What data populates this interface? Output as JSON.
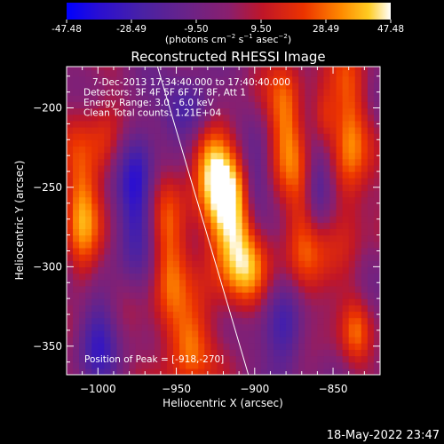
{
  "chart_data": {
    "type": "heatmap",
    "title": "Reconstructed RHESSI Image",
    "xlabel": "Heliocentric X (arcsec)",
    "ylabel": "Heliocentric Y (arcsec)",
    "xlim": [
      -1020,
      -820
    ],
    "ylim": [
      -368,
      -174
    ],
    "x_ticks": [
      -1000,
      -950,
      -900,
      -850
    ],
    "y_ticks": [
      -200,
      -250,
      -300,
      -350
    ],
    "colorbar": {
      "range": [
        -47.48,
        47.48
      ],
      "tick_values": [
        -47.48,
        -28.49,
        -9.5,
        9.5,
        28.49,
        47.48
      ],
      "tick_labels": [
        "-47.48",
        "-28.49",
        "-9.50",
        "9.50",
        "28.49",
        "47.48"
      ],
      "units_html": "(photons cm<tspan dy=\"-5\" font-size=\"7\">−2</tspan><tspan dy=\"5\"> s</tspan><tspan dy=\"-5\" font-size=\"7\">−1</tspan><tspan dy=\"5\"> asec</tspan><tspan dy=\"-5\" font-size=\"7\">−2</tspan><tspan dy=\"5\">)</tspan>"
    },
    "annotations": [
      "7-Dec-2013 17:34:40.000 to 17:40:40.000",
      "Detectors: 3F 4F 5F 6F 7F 8F, Att 1",
      "Energy Range: 3.0 - 6.0 keV",
      "Clean     Total counts: 1.21E+04"
    ],
    "peak_label": "Position of Peak = [-918,-270]",
    "peak": {
      "x": -918,
      "y": -270,
      "value": 47.48
    },
    "limb_line": [
      {
        "x": -962,
        "y": -174
      },
      {
        "x": -904,
        "y": -368
      }
    ],
    "sources": [
      {
        "x": -918,
        "y": -270,
        "sx": 12,
        "sy": 28,
        "amp": 46
      },
      {
        "x": -928,
        "y": -232,
        "sx": 10,
        "sy": 20,
        "amp": 30
      },
      {
        "x": -905,
        "y": -305,
        "sx": 10,
        "sy": 20,
        "amp": 24
      },
      {
        "x": -1010,
        "y": -270,
        "sx": 8,
        "sy": 45,
        "amp": 30
      },
      {
        "x": -996,
        "y": -225,
        "sx": 7,
        "sy": 18,
        "amp": 18
      },
      {
        "x": -955,
        "y": -300,
        "sx": 8,
        "sy": 40,
        "amp": 26
      },
      {
        "x": -942,
        "y": -350,
        "sx": 9,
        "sy": 18,
        "amp": 30
      },
      {
        "x": -880,
        "y": -210,
        "sx": 8,
        "sy": 28,
        "amp": 28
      },
      {
        "x": -870,
        "y": -300,
        "sx": 10,
        "sy": 40,
        "amp": 30
      },
      {
        "x": -856,
        "y": -205,
        "sx": 6,
        "sy": 14,
        "amp": 24
      },
      {
        "x": -840,
        "y": -225,
        "sx": 8,
        "sy": 45,
        "amp": 28
      },
      {
        "x": -835,
        "y": -340,
        "sx": 6,
        "sy": 15,
        "amp": 18
      },
      {
        "x": -975,
        "y": -250,
        "sx": 8,
        "sy": 30,
        "amp": -38
      },
      {
        "x": -880,
        "y": -340,
        "sx": 10,
        "sy": 25,
        "amp": -42
      },
      {
        "x": -1000,
        "y": -340,
        "sx": 10,
        "sy": 25,
        "amp": -30
      },
      {
        "x": -940,
        "y": -200,
        "sx": 12,
        "sy": 14,
        "amp": -35
      },
      {
        "x": -860,
        "y": -250,
        "sx": 6,
        "sy": 20,
        "amp": -28
      },
      {
        "x": -900,
        "y": -250,
        "sx": 6,
        "sy": 20,
        "amp": -22
      }
    ],
    "colormap": [
      {
        "v": -47.48,
        "hex": "#0000ff"
      },
      {
        "v": -38.0,
        "hex": "#2a0fd2"
      },
      {
        "v": -25.0,
        "hex": "#4a22a4"
      },
      {
        "v": -12.0,
        "hex": "#6a2388"
      },
      {
        "v": 0.0,
        "hex": "#8a1f6e"
      },
      {
        "v": 10.0,
        "hex": "#c01628"
      },
      {
        "v": 22.0,
        "hex": "#ec3300"
      },
      {
        "v": 33.0,
        "hex": "#ff8a00"
      },
      {
        "v": 41.0,
        "hex": "#ffcc22"
      },
      {
        "v": 47.48,
        "hex": "#ffffff"
      }
    ]
  },
  "footer": {
    "timestamp": "18-May-2022 23:47"
  }
}
